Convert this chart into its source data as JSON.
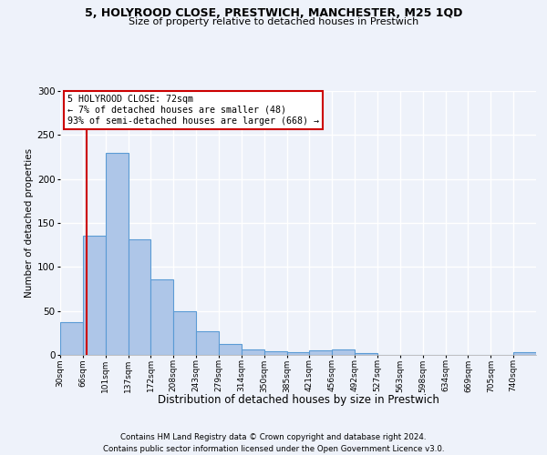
{
  "title1": "5, HOLYROOD CLOSE, PRESTWICH, MANCHESTER, M25 1QD",
  "title2": "Size of property relative to detached houses in Prestwich",
  "xlabel": "Distribution of detached houses by size in Prestwich",
  "ylabel": "Number of detached properties",
  "footer1": "Contains HM Land Registry data © Crown copyright and database right 2024.",
  "footer2": "Contains public sector information licensed under the Open Government Licence v3.0.",
  "bar_labels": [
    "30sqm",
    "66sqm",
    "101sqm",
    "137sqm",
    "172sqm",
    "208sqm",
    "243sqm",
    "279sqm",
    "314sqm",
    "350sqm",
    "385sqm",
    "421sqm",
    "456sqm",
    "492sqm",
    "527sqm",
    "563sqm",
    "598sqm",
    "634sqm",
    "669sqm",
    "705sqm",
    "740sqm"
  ],
  "bar_values": [
    37,
    136,
    230,
    131,
    86,
    50,
    27,
    12,
    6,
    4,
    3,
    5,
    6,
    2,
    0,
    0,
    0,
    0,
    0,
    0,
    3
  ],
  "bar_color": "#aec6e8",
  "bar_edge_color": "#5b9bd5",
  "annotation_box_text": "5 HOLYROOD CLOSE: 72sqm\n← 7% of detached houses are smaller (48)\n93% of semi-detached houses are larger (668) →",
  "annotation_box_color": "#ffffff",
  "annotation_box_edge_color": "#cc0000",
  "vline_color": "#cc0000",
  "bg_color": "#eef2fa",
  "plot_bg_color": "#eef2fa",
  "grid_color": "#ffffff",
  "ylim": [
    0,
    300
  ],
  "yticks": [
    0,
    50,
    100,
    150,
    200,
    250,
    300
  ]
}
